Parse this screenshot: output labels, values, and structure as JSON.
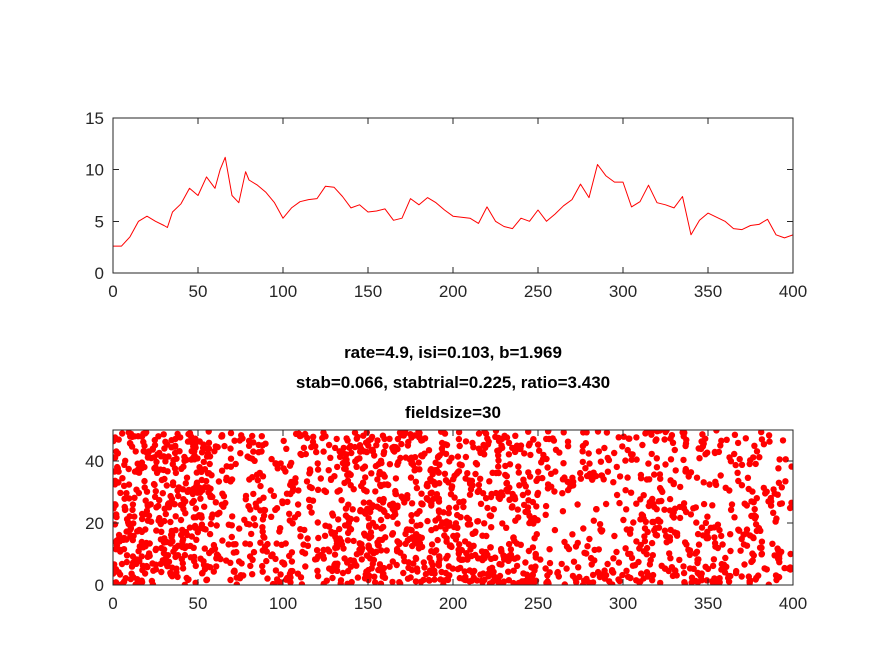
{
  "chart_data": [
    {
      "type": "line",
      "title": "",
      "xlabel": "",
      "ylabel": "",
      "xlim": [
        0,
        400
      ],
      "ylim": [
        0,
        15
      ],
      "xticks": [
        0,
        50,
        100,
        150,
        200,
        250,
        300,
        350,
        400
      ],
      "yticks": [
        0,
        5,
        10,
        15
      ],
      "grid": false,
      "series": [
        {
          "color": "#ff0000",
          "x": [
            0,
            5,
            10,
            15,
            20,
            25,
            30,
            32,
            35,
            40,
            45,
            50,
            55,
            60,
            63,
            66,
            70,
            74,
            78,
            80,
            85,
            90,
            95,
            100,
            105,
            110,
            115,
            120,
            125,
            130,
            135,
            140,
            145,
            150,
            155,
            160,
            165,
            170,
            175,
            180,
            185,
            190,
            195,
            200,
            205,
            210,
            215,
            220,
            225,
            230,
            235,
            240,
            245,
            250,
            255,
            260,
            265,
            270,
            275,
            280,
            285,
            290,
            295,
            300,
            305,
            310,
            315,
            320,
            325,
            330,
            335,
            340,
            345,
            350,
            355,
            360,
            365,
            370,
            375,
            380,
            385,
            390,
            395,
            400
          ],
          "y": [
            2.6,
            2.6,
            3.5,
            5.0,
            5.5,
            5.0,
            4.6,
            4.4,
            5.9,
            6.7,
            8.2,
            7.5,
            9.3,
            8.2,
            10.0,
            11.2,
            7.5,
            6.8,
            9.8,
            9.0,
            8.5,
            7.8,
            6.8,
            5.3,
            6.3,
            6.9,
            7.1,
            7.2,
            8.4,
            8.3,
            7.4,
            6.3,
            6.6,
            5.9,
            6.0,
            6.2,
            5.1,
            5.3,
            7.2,
            6.6,
            7.3,
            6.8,
            6.1,
            5.5,
            5.4,
            5.3,
            4.8,
            6.4,
            5.0,
            4.5,
            4.3,
            5.3,
            5.0,
            6.1,
            5.0,
            5.7,
            6.5,
            7.1,
            8.6,
            7.3,
            10.5,
            9.4,
            8.8,
            8.8,
            6.4,
            6.9,
            8.5,
            6.8,
            6.6,
            6.3,
            7.4,
            3.7,
            5.1,
            5.8,
            5.4,
            5.0,
            4.3,
            4.2,
            4.6,
            4.7,
            5.2,
            3.7,
            3.4,
            3.7
          ]
        }
      ]
    },
    {
      "type": "scatter",
      "title": [
        "rate=4.9, isi=0.103, b=1.969",
        "stab=0.066, stabtrial=0.225, ratio=3.430",
        "fieldsize=30"
      ],
      "xlabel": "",
      "ylabel": "",
      "xlim": [
        0,
        400
      ],
      "ylim": [
        0,
        50
      ],
      "xticks": [
        0,
        50,
        100,
        150,
        200,
        250,
        300,
        350,
        400
      ],
      "yticks": [
        0,
        20,
        40
      ],
      "grid": false,
      "color": "#ff0000",
      "marker": "filled-circle",
      "point_count_estimate": 1960,
      "x_range": [
        0,
        400
      ],
      "y_range": [
        0,
        50
      ]
    }
  ]
}
